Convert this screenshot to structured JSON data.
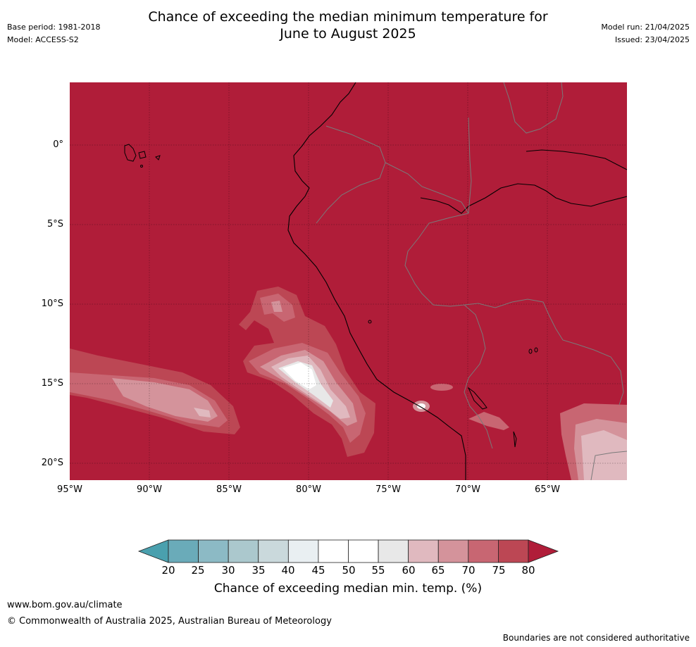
{
  "title_line1": "Chance of exceeding the median minimum temperature for",
  "title_line2": "June to August 2025",
  "meta_left": {
    "base_period": "Base period: 1981-2018",
    "model": "Model: ACCESS-S2"
  },
  "meta_right": {
    "model_run": "Model run: 21/04/2025",
    "issued": "Issued: 23/04/2025"
  },
  "y_ticks": [
    "0°",
    "5°S",
    "10°S",
    "15°S",
    "20°S"
  ],
  "x_ticks": [
    "95°W",
    "90°W",
    "85°W",
    "80°W",
    "75°W",
    "70°W",
    "65°W"
  ],
  "colorbar": {
    "ticks": [
      "20",
      "25",
      "30",
      "35",
      "40",
      "45",
      "50",
      "55",
      "60",
      "65",
      "70",
      "75",
      "80"
    ],
    "label": "Chance of exceeding median min. temp. (%)",
    "colors": [
      "#4aa0ae",
      "#6aabb9",
      "#8cbac5",
      "#abc8cd",
      "#cad9dc",
      "#e9eff2",
      "#ffffff",
      "#ffffff",
      "#e8e8e8",
      "#e0b9bf",
      "#d4939b",
      "#c86672",
      "#bc4754",
      "#b01d39"
    ]
  },
  "footer": {
    "url": "www.bom.gov.au/climate",
    "copyright": "© Commonwealth of Australia 2025, Australian Bureau of Meteorology",
    "note": "Boundaries are not considered authoritative"
  }
}
